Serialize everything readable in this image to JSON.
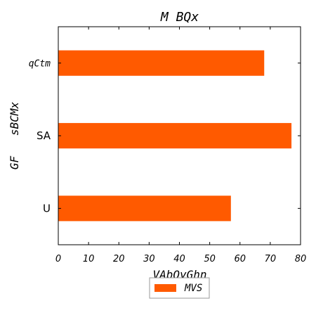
{
  "chart_data": {
    "type": "bar",
    "orientation": "horizontal",
    "title": "M BQx",
    "xlabel": "VAbQyGhn",
    "ylabel": "GF   sBCMx",
    "categories": [
      "U",
      "SA",
      "qCtm"
    ],
    "category_label_styles": [
      "sans",
      "sans",
      "mono-italic"
    ],
    "series": [
      {
        "name": "MVS",
        "values": [
          57,
          77,
          68
        ],
        "color": "#ff5a00"
      }
    ],
    "xlim": [
      0,
      80
    ],
    "xticks": [
      0,
      10,
      20,
      30,
      40,
      50,
      60,
      70,
      80
    ],
    "grid": false,
    "legend_position": "bottom-center"
  }
}
